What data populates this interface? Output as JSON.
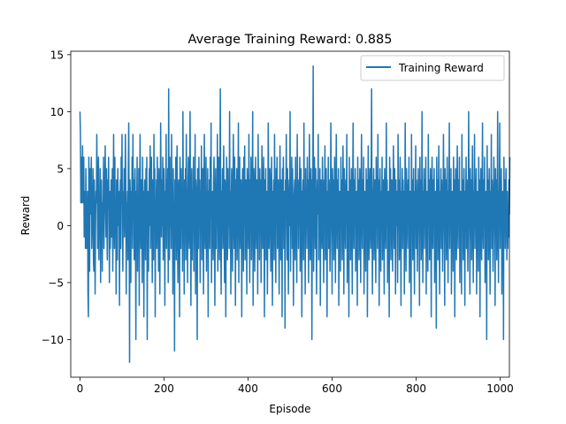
{
  "chart_data": {
    "type": "line",
    "title": "Average Training Reward: 0.885",
    "xlabel": "Episode",
    "ylabel": "Reward",
    "xlim": [
      -22,
      1022
    ],
    "ylim": [
      -13.3,
      15.3
    ],
    "x_ticks": [
      0,
      200,
      400,
      600,
      800,
      1000
    ],
    "y_ticks": [
      -10,
      -5,
      0,
      5,
      10,
      15
    ],
    "x_tick_labels": [
      "0",
      "200",
      "400",
      "600",
      "800",
      "1000"
    ],
    "y_tick_labels": [
      "−10",
      "−5",
      "0",
      "5",
      "10",
      "15"
    ],
    "legend": {
      "position": "top-right"
    },
    "grid": false,
    "series": [
      {
        "name": "Training Reward",
        "color": "#1f77b4",
        "x_start": 0,
        "x_step": 1,
        "values": [
          10,
          8,
          2,
          6,
          3,
          2,
          7,
          4,
          2,
          6,
          -1,
          3,
          2,
          -2,
          5,
          1,
          -2,
          0,
          3,
          -6,
          -8,
          6,
          2,
          -4,
          5,
          1,
          3,
          6,
          -2,
          0,
          2,
          5,
          -3,
          -4,
          4,
          1,
          -6,
          0,
          3,
          2,
          8,
          4,
          -2,
          1,
          6,
          -3,
          2,
          0,
          5,
          -5,
          3,
          4,
          1,
          -4,
          2,
          0,
          6,
          -2,
          1,
          3,
          7,
          2,
          -1,
          5,
          0,
          -3,
          4,
          2,
          6,
          1,
          -5,
          3,
          -2,
          0,
          4,
          -1,
          2,
          5,
          -4,
          1,
          8,
          3,
          -2,
          6,
          0,
          2,
          -6,
          4,
          1,
          -3,
          5,
          2,
          0,
          3,
          -7,
          1,
          4,
          -2,
          6,
          2,
          8,
          0,
          -4,
          3,
          1,
          5,
          -1,
          2,
          8,
          4,
          -6,
          2,
          0,
          3,
          -3,
          5,
          9,
          1,
          -12,
          4,
          2,
          -5,
          3,
          0,
          6,
          -2,
          8,
          1,
          4,
          -3,
          2,
          5,
          0,
          -10,
          3,
          1,
          6,
          -4,
          2,
          0,
          5,
          -7,
          3,
          8,
          2,
          -2,
          4,
          1,
          -5,
          6,
          0,
          3,
          -8,
          2,
          4,
          1,
          -3,
          5,
          0,
          6,
          -10,
          2,
          3,
          -4,
          1,
          5,
          0,
          7,
          -2,
          3,
          6,
          1,
          -5,
          4,
          2,
          -3,
          8,
          0,
          5,
          -8,
          2,
          1,
          4,
          -2,
          6,
          3,
          0,
          -4,
          5,
          1,
          -6,
          2,
          9,
          3,
          -1,
          4,
          0,
          6,
          -3,
          2,
          5,
          1,
          -7,
          3,
          0,
          8,
          -2,
          4,
          1,
          5,
          -5,
          12,
          2,
          -3,
          6,
          0,
          4,
          -2,
          8,
          1,
          3,
          -6,
          5,
          0,
          2,
          -11,
          4,
          1,
          6,
          -3,
          2,
          7,
          0,
          -5,
          3,
          4,
          1,
          -8,
          6,
          2,
          -2,
          5,
          0,
          3,
          -4,
          10,
          1,
          2,
          -6,
          4,
          0,
          5,
          -3,
          8,
          2,
          1,
          -5,
          3,
          6,
          0,
          -2,
          4,
          10,
          1,
          -7,
          2,
          5,
          -3,
          3,
          0,
          6,
          -4,
          2,
          1,
          8,
          -6,
          4,
          3,
          0,
          -10,
          5,
          2,
          -2,
          6,
          1,
          4,
          -5,
          3,
          0,
          7,
          -3,
          2,
          5,
          1,
          -6,
          4,
          8,
          0,
          -2,
          3,
          6,
          -4,
          2,
          1,
          5,
          -8,
          3,
          0,
          4,
          -2,
          6,
          1,
          9,
          -5,
          2,
          3,
          0,
          -3,
          4,
          6,
          1,
          -7,
          2,
          5,
          -2,
          3,
          0,
          8,
          -4,
          1,
          6,
          2,
          -3,
          4,
          12,
          0,
          -6,
          3,
          1,
          5,
          -2,
          2,
          7,
          0,
          -5,
          4,
          3,
          -8,
          1,
          6,
          2,
          -3,
          5,
          0,
          4,
          -2,
          10,
          1,
          3,
          -6,
          2,
          5,
          0,
          -4,
          3,
          8,
          1,
          -2,
          6,
          2,
          -7,
          4,
          0,
          5,
          -3,
          1,
          3,
          9,
          -5,
          2,
          6,
          0,
          -2,
          4,
          1,
          -8,
          3,
          5,
          2,
          -4,
          6,
          0,
          7,
          -3,
          1,
          4,
          2,
          -6,
          5,
          3,
          0,
          -2,
          8,
          1,
          -5,
          4,
          2,
          6,
          -3,
          0,
          3,
          10,
          -7,
          1,
          5,
          2,
          -4,
          3,
          6,
          0,
          -2,
          4,
          1,
          -6,
          8,
          2,
          3,
          -3,
          5,
          0,
          4,
          -5,
          1,
          7,
          2,
          -2,
          3,
          6,
          0,
          -8,
          4,
          1,
          5,
          -3,
          2,
          3,
          -6,
          0,
          9,
          4,
          -2,
          1,
          5,
          3,
          -4,
          2,
          6,
          0,
          -7,
          3,
          1,
          4,
          -3,
          8,
          2,
          0,
          -5,
          5,
          1,
          6,
          -2,
          3,
          4,
          0,
          -6,
          2,
          7,
          1,
          -3,
          4,
          3,
          -8,
          5,
          0,
          6,
          -2,
          1,
          3,
          -9,
          4,
          2,
          8,
          0,
          -3,
          5,
          1,
          -6,
          2,
          4,
          0,
          10,
          -4,
          3,
          1,
          6,
          -2,
          5,
          0,
          -7,
          2,
          3,
          4,
          -3,
          6,
          1,
          0,
          -5,
          8,
          2,
          3,
          -2,
          4,
          1,
          6,
          -4,
          0,
          5,
          2,
          -8,
          3,
          1,
          4,
          -3,
          9,
          0,
          2,
          -6,
          5,
          1,
          3,
          -2,
          6,
          0,
          4,
          -5,
          2,
          8,
          1,
          -3,
          3,
          5,
          0,
          -10,
          4,
          2,
          14,
          -4,
          1,
          6,
          3,
          -2,
          5,
          0,
          -6,
          2,
          4,
          1,
          8,
          -3,
          3,
          0,
          5,
          -7,
          2,
          4,
          1,
          -2,
          6,
          3,
          0,
          -5,
          4,
          1,
          7,
          -3,
          2,
          5,
          0,
          -8,
          3,
          1,
          6,
          -2,
          4,
          2,
          -4,
          0,
          9,
          3,
          1,
          -6,
          5,
          2,
          4,
          -3,
          0,
          6,
          1,
          -5,
          3,
          8,
          2,
          -2,
          4,
          0,
          5,
          -7,
          1,
          3,
          2,
          -4,
          6,
          0,
          4,
          -3,
          2,
          7,
          1,
          -6,
          5,
          3,
          0,
          -2,
          4,
          1,
          8,
          -5,
          2,
          3,
          0,
          -8,
          6,
          1,
          4,
          -3,
          2,
          5,
          0,
          -6,
          3,
          9,
          1,
          -2,
          4,
          2,
          5,
          -4,
          0,
          3,
          1,
          -7,
          6,
          2,
          4,
          -3,
          0,
          5,
          1,
          -5,
          3,
          8,
          2,
          -2,
          4,
          0,
          6,
          -6,
          1,
          3,
          2,
          -4,
          5,
          0,
          4,
          -8,
          2,
          7,
          1,
          -3,
          3,
          5,
          0,
          -2,
          4,
          12,
          1,
          -6,
          2,
          3,
          5,
          -3,
          0,
          4,
          1,
          -5,
          6,
          2,
          3,
          -2,
          8,
          0,
          4,
          -7,
          1,
          5,
          2,
          -4,
          3,
          0,
          6,
          -3,
          2,
          4,
          1,
          -6,
          5,
          3,
          0,
          -2,
          9,
          1,
          4,
          -5,
          2,
          3,
          0,
          -8,
          6,
          1,
          5,
          -3,
          2,
          4,
          0,
          -4,
          3,
          7,
          1,
          -2,
          5,
          2,
          -6,
          4,
          0,
          3,
          1,
          -5,
          8,
          2,
          4,
          -3,
          0,
          6,
          1,
          -7,
          3,
          2,
          5,
          -2,
          4,
          0,
          3,
          -6,
          1,
          9,
          2,
          -4,
          5,
          3,
          0,
          -2,
          4,
          1,
          6,
          -5,
          2,
          3,
          0,
          -8,
          8,
          1,
          4,
          -3,
          2,
          5,
          0,
          -6,
          3,
          1,
          7,
          -2,
          4,
          2,
          -4,
          0,
          5,
          3,
          1,
          -7,
          6,
          2,
          4,
          -3,
          0,
          10,
          1,
          -5,
          3,
          2,
          5,
          -2,
          4,
          0,
          6,
          -6,
          1,
          3,
          2,
          -4,
          8,
          0,
          4,
          -3,
          2,
          5,
          1,
          -8,
          3,
          6,
          0,
          -2,
          4,
          1,
          5,
          -5,
          2,
          3,
          0,
          -9,
          6,
          1,
          4,
          -3,
          2,
          7,
          0,
          -6,
          3,
          1,
          5,
          -2,
          4,
          2,
          -4,
          0,
          8,
          3,
          1,
          -7,
          5,
          2,
          4,
          -3,
          0,
          6,
          1,
          -5,
          3,
          2,
          9,
          -2,
          4,
          0,
          5,
          -6,
          1,
          3,
          2,
          -4,
          6,
          0,
          4,
          -8,
          2,
          5,
          1,
          -3,
          3,
          7,
          0,
          -2,
          4,
          1,
          6,
          -5,
          2,
          3,
          0,
          -6,
          8,
          1,
          4,
          -3,
          2,
          5,
          0,
          -7,
          3,
          1,
          6,
          -2,
          4,
          2,
          -4,
          0,
          10,
          3,
          1,
          -6,
          5,
          2,
          4,
          -3,
          0,
          7,
          1,
          -5,
          3,
          2,
          8,
          -2,
          4,
          0,
          5,
          -6,
          1,
          3,
          2,
          -4,
          6,
          0,
          4,
          -8,
          2,
          5,
          1,
          -3,
          3,
          9,
          0,
          -2,
          4,
          1,
          6,
          -5,
          2,
          3,
          0,
          -10,
          7,
          1,
          4,
          -3,
          2,
          5,
          0,
          -6,
          3,
          1,
          8,
          -2,
          4,
          2,
          -4,
          0,
          6,
          3,
          1,
          -7,
          5,
          2,
          4,
          -3,
          0,
          10,
          1,
          -5,
          3,
          2,
          9,
          -2,
          4,
          0,
          5,
          -6,
          1,
          3,
          2,
          -10,
          6,
          0,
          4,
          -2,
          2,
          5,
          1,
          -3,
          3,
          -2,
          0,
          -1,
          4,
          1,
          6
        ]
      }
    ]
  }
}
